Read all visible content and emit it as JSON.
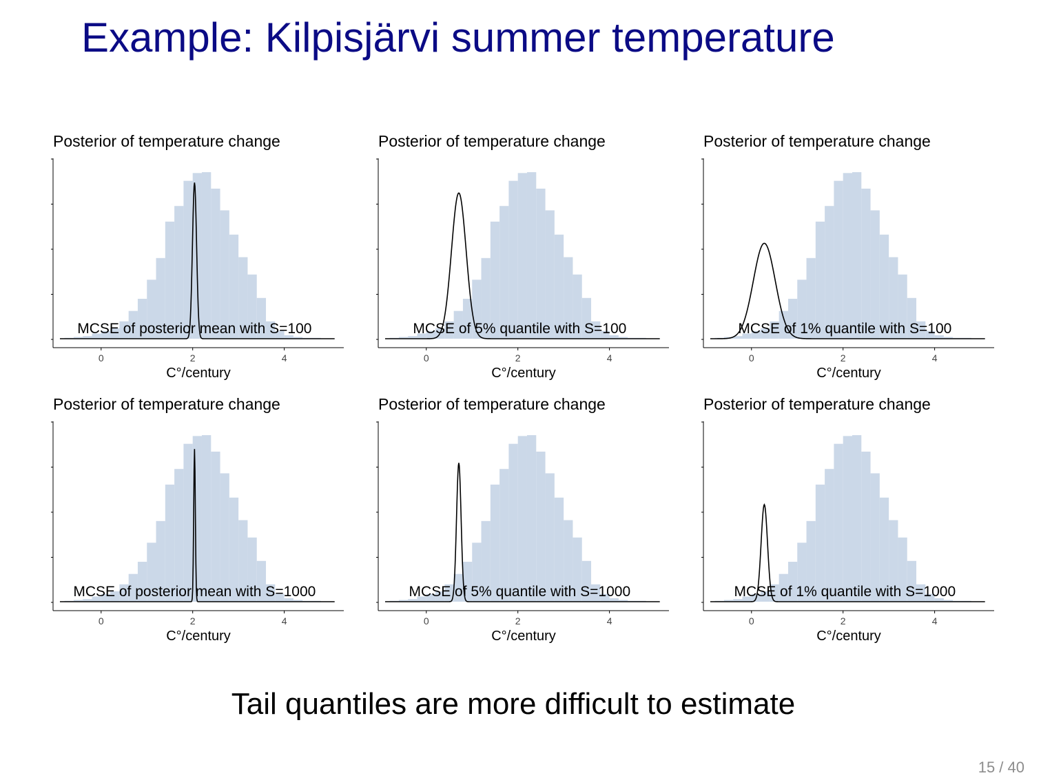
{
  "slide": {
    "title": "Example: Kilpisjärvi summer temperature",
    "footer_note": "Tail quantiles are more difficult to estimate",
    "page_number": "15 / 40"
  },
  "colors": {
    "histogram": "#cbd8e8",
    "curve": "#000000",
    "title_text": "#0b0b85"
  },
  "chart_data": [
    {
      "type": "bar",
      "title": "Posterior of temperature change",
      "xlabel": "C°/century",
      "annotation": "MCSE of posterior mean with S=100",
      "xlim": [
        -1.05,
        5.3
      ],
      "xticks": [
        0,
        2,
        4
      ],
      "ylim": [
        0,
        1
      ],
      "hist_bin_edges": [
        -0.8,
        -0.6,
        -0.4,
        -0.2,
        0.0,
        0.2,
        0.4,
        0.6,
        0.8,
        1.0,
        1.2,
        1.4,
        1.6,
        1.8,
        2.0,
        2.2,
        2.4,
        2.6,
        2.8,
        3.0,
        3.2,
        3.4,
        3.6,
        3.8,
        4.0,
        4.2,
        4.4,
        4.6,
        4.8
      ],
      "hist_heights": [
        0.005,
        0.01,
        0.015,
        0.03,
        0.045,
        0.06,
        0.1,
        0.16,
        0.23,
        0.34,
        0.465,
        0.675,
        0.765,
        0.91,
        0.955,
        0.96,
        0.865,
        0.74,
        0.6,
        0.47,
        0.37,
        0.235,
        0.1,
        0.045,
        0.02,
        0.01,
        0.005,
        0.005
      ],
      "curve": {
        "mean": 2.04,
        "sd": 0.045,
        "peak": 0.9,
        "x_range": [
          -0.9,
          5.1
        ]
      }
    },
    {
      "type": "bar",
      "title": "Posterior of temperature change",
      "xlabel": "C°/century",
      "annotation": "MCSE of 5% quantile with S=100",
      "xlim": [
        -1.05,
        5.3
      ],
      "xticks": [
        0,
        2,
        4
      ],
      "ylim": [
        0,
        1
      ],
      "hist_bin_edges": [
        -0.8,
        -0.6,
        -0.4,
        -0.2,
        0.0,
        0.2,
        0.4,
        0.6,
        0.8,
        1.0,
        1.2,
        1.4,
        1.6,
        1.8,
        2.0,
        2.2,
        2.4,
        2.6,
        2.8,
        3.0,
        3.2,
        3.4,
        3.6,
        3.8,
        4.0,
        4.2,
        4.4,
        4.6,
        4.8
      ],
      "hist_heights": [
        0.005,
        0.01,
        0.015,
        0.03,
        0.045,
        0.06,
        0.1,
        0.16,
        0.23,
        0.34,
        0.465,
        0.675,
        0.765,
        0.91,
        0.955,
        0.96,
        0.865,
        0.74,
        0.6,
        0.47,
        0.37,
        0.235,
        0.1,
        0.045,
        0.02,
        0.01,
        0.005,
        0.005
      ],
      "curve": {
        "mean": 0.71,
        "sd": 0.16,
        "peak": 0.84,
        "x_range": [
          -0.9,
          5.1
        ]
      }
    },
    {
      "type": "bar",
      "title": "Posterior of temperature change",
      "xlabel": "C°/century",
      "annotation": "MCSE of 1% quantile with S=100",
      "xlim": [
        -1.05,
        5.3
      ],
      "xticks": [
        0,
        2,
        4
      ],
      "ylim": [
        0,
        1
      ],
      "hist_bin_edges": [
        -0.8,
        -0.6,
        -0.4,
        -0.2,
        0.0,
        0.2,
        0.4,
        0.6,
        0.8,
        1.0,
        1.2,
        1.4,
        1.6,
        1.8,
        2.0,
        2.2,
        2.4,
        2.6,
        2.8,
        3.0,
        3.2,
        3.4,
        3.6,
        3.8,
        4.0,
        4.2,
        4.4,
        4.6,
        4.8
      ],
      "hist_heights": [
        0.005,
        0.01,
        0.015,
        0.03,
        0.045,
        0.06,
        0.1,
        0.16,
        0.23,
        0.34,
        0.465,
        0.675,
        0.765,
        0.91,
        0.955,
        0.96,
        0.865,
        0.74,
        0.6,
        0.47,
        0.37,
        0.235,
        0.1,
        0.045,
        0.02,
        0.01,
        0.005,
        0.005
      ],
      "curve": {
        "mean": 0.28,
        "sd": 0.24,
        "peak": 0.55,
        "x_range": [
          -0.9,
          5.1
        ]
      }
    },
    {
      "type": "bar",
      "title": "Posterior of temperature change",
      "xlabel": "C°/century",
      "annotation": "MCSE of posterior mean with S=1000",
      "xlim": [
        -1.05,
        5.3
      ],
      "xticks": [
        0,
        2,
        4
      ],
      "ylim": [
        0,
        1
      ],
      "hist_bin_edges": [
        -0.8,
        -0.6,
        -0.4,
        -0.2,
        0.0,
        0.2,
        0.4,
        0.6,
        0.8,
        1.0,
        1.2,
        1.4,
        1.6,
        1.8,
        2.0,
        2.2,
        2.4,
        2.6,
        2.8,
        3.0,
        3.2,
        3.4,
        3.6,
        3.8,
        4.0,
        4.2,
        4.4,
        4.6,
        4.8
      ],
      "hist_heights": [
        0.005,
        0.01,
        0.015,
        0.03,
        0.045,
        0.06,
        0.1,
        0.16,
        0.23,
        0.34,
        0.465,
        0.675,
        0.765,
        0.91,
        0.955,
        0.96,
        0.865,
        0.74,
        0.6,
        0.47,
        0.37,
        0.235,
        0.1,
        0.045,
        0.02,
        0.01,
        0.005,
        0.005
      ],
      "curve": {
        "mean": 2.04,
        "sd": 0.018,
        "peak": 0.88,
        "x_range": [
          -0.9,
          5.1
        ]
      }
    },
    {
      "type": "bar",
      "title": "Posterior of temperature change",
      "xlabel": "C°/century",
      "annotation": "MCSE of 5% quantile with S=1000",
      "xlim": [
        -1.05,
        5.3
      ],
      "xticks": [
        0,
        2,
        4
      ],
      "ylim": [
        0,
        1
      ],
      "hist_bin_edges": [
        -0.8,
        -0.6,
        -0.4,
        -0.2,
        0.0,
        0.2,
        0.4,
        0.6,
        0.8,
        1.0,
        1.2,
        1.4,
        1.6,
        1.8,
        2.0,
        2.2,
        2.4,
        2.6,
        2.8,
        3.0,
        3.2,
        3.4,
        3.6,
        3.8,
        4.0,
        4.2,
        4.4,
        4.6,
        4.8
      ],
      "hist_heights": [
        0.005,
        0.01,
        0.015,
        0.03,
        0.045,
        0.06,
        0.1,
        0.16,
        0.23,
        0.34,
        0.465,
        0.675,
        0.765,
        0.91,
        0.955,
        0.96,
        0.865,
        0.74,
        0.6,
        0.47,
        0.37,
        0.235,
        0.1,
        0.045,
        0.02,
        0.01,
        0.005,
        0.005
      ],
      "curve": {
        "mean": 0.71,
        "sd": 0.05,
        "peak": 0.8,
        "x_range": [
          -0.9,
          5.1
        ]
      }
    },
    {
      "type": "bar",
      "title": "Posterior of temperature change",
      "xlabel": "C°/century",
      "annotation": "MCSE of 1% quantile with S=1000",
      "xlim": [
        -1.05,
        5.3
      ],
      "xticks": [
        0,
        2,
        4
      ],
      "ylim": [
        0,
        1
      ],
      "hist_bin_edges": [
        -0.8,
        -0.6,
        -0.4,
        -0.2,
        0.0,
        0.2,
        0.4,
        0.6,
        0.8,
        1.0,
        1.2,
        1.4,
        1.6,
        1.8,
        2.0,
        2.2,
        2.4,
        2.6,
        2.8,
        3.0,
        3.2,
        3.4,
        3.6,
        3.8,
        4.0,
        4.2,
        4.4,
        4.6,
        4.8
      ],
      "hist_heights": [
        0.005,
        0.01,
        0.015,
        0.03,
        0.045,
        0.06,
        0.1,
        0.16,
        0.23,
        0.34,
        0.465,
        0.675,
        0.765,
        0.91,
        0.955,
        0.96,
        0.865,
        0.74,
        0.6,
        0.47,
        0.37,
        0.235,
        0.1,
        0.045,
        0.02,
        0.01,
        0.005,
        0.005
      ],
      "curve": {
        "mean": 0.28,
        "sd": 0.07,
        "peak": 0.56,
        "x_range": [
          -0.9,
          5.1
        ]
      }
    }
  ]
}
